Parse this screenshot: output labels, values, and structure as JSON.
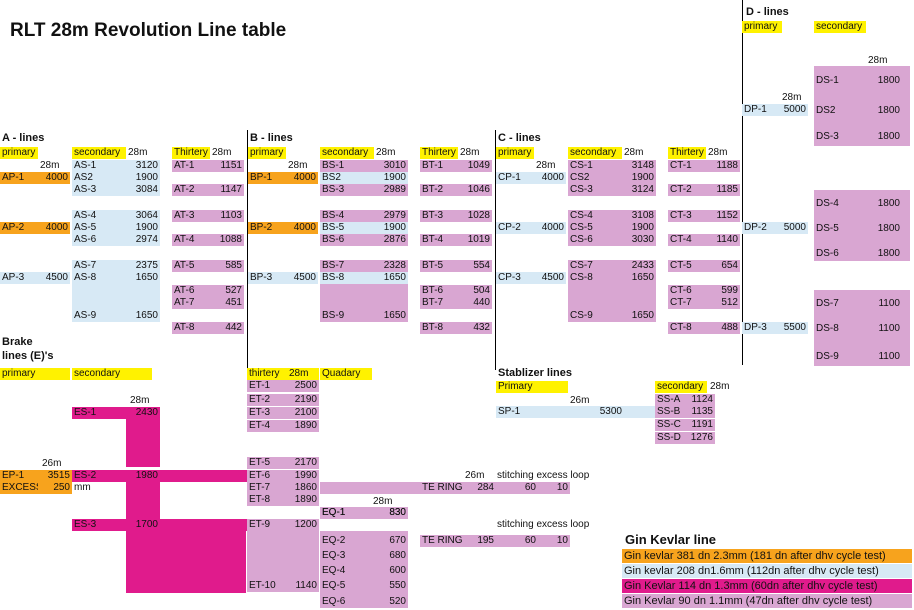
{
  "title": "RLT 28m Revolution Line table",
  "a": {
    "header": "A - lines",
    "primary": "primary",
    "secondary": "secondary",
    "thirtery": "Thirtery",
    "len28": "28m",
    "p": [
      [
        "AP-1",
        "4000"
      ],
      [
        "AP-2",
        "4000"
      ],
      [
        "AP-3",
        "4500"
      ]
    ],
    "s": [
      [
        "AS-1",
        "3120"
      ],
      [
        "AS2",
        "1900"
      ],
      [
        "AS-3",
        "3084"
      ],
      [
        "AS-4",
        "3064"
      ],
      [
        "AS-5",
        "1900"
      ],
      [
        "AS-6",
        "2974"
      ],
      [
        "AS-7",
        "2375"
      ],
      [
        "AS-8",
        "1650"
      ],
      [
        "AS-9",
        "1650"
      ]
    ],
    "t": [
      [
        "AT-1",
        "1151"
      ],
      [
        "AT-2",
        "1147"
      ],
      [
        "AT-3",
        "1103"
      ],
      [
        "AT-4",
        "1088"
      ],
      [
        "AT-5",
        "585"
      ],
      [
        "AT-6",
        "527"
      ],
      [
        "AT-7",
        "451"
      ],
      [
        "AT-8",
        "442"
      ]
    ]
  },
  "b": {
    "header": "B - lines",
    "primary": "primary",
    "secondary": "secondary",
    "thirtery": "Thirtery",
    "len28": "28m",
    "p": [
      [
        "BP-1",
        "4000"
      ],
      [
        "BP-2",
        "4000"
      ],
      [
        "BP-3",
        "4500"
      ]
    ],
    "s": [
      [
        "BS-1",
        "3010"
      ],
      [
        "BS2",
        "1900"
      ],
      [
        "BS-3",
        "2989"
      ],
      [
        "BS-4",
        "2979"
      ],
      [
        "BS-5",
        "1900"
      ],
      [
        "BS-6",
        "2876"
      ],
      [
        "BS-7",
        "2328"
      ],
      [
        "BS-8",
        "1650"
      ],
      [
        "BS-9",
        "1650"
      ]
    ],
    "t": [
      [
        "BT-1",
        "1049"
      ],
      [
        "BT-2",
        "1046"
      ],
      [
        "BT-3",
        "1028"
      ],
      [
        "BT-4",
        "1019"
      ],
      [
        "BT-5",
        "554"
      ],
      [
        "BT-6",
        "504"
      ],
      [
        "BT-7",
        "440"
      ],
      [
        "BT-8",
        "432"
      ]
    ]
  },
  "c": {
    "header": "C - lines",
    "primary": "primary",
    "secondary": "secondary",
    "thirtery": "Thirtery",
    "len28": "28m",
    "p": [
      [
        "CP-1",
        "4000"
      ],
      [
        "CP-2",
        "4000"
      ],
      [
        "CP-3",
        "4500"
      ]
    ],
    "s": [
      [
        "CS-1",
        "3148"
      ],
      [
        "CS2",
        "1900"
      ],
      [
        "CS-3",
        "3124"
      ],
      [
        "CS-4",
        "3108"
      ],
      [
        "CS-5",
        "1900"
      ],
      [
        "CS-6",
        "3030"
      ],
      [
        "CS-7",
        "2433"
      ],
      [
        "CS-8",
        "1650"
      ],
      [
        "CS-9",
        "1650"
      ]
    ],
    "t": [
      [
        "CT-1",
        "1188"
      ],
      [
        "CT-2",
        "1185"
      ],
      [
        "CT-3",
        "1152"
      ],
      [
        "CT-4",
        "1140"
      ],
      [
        "CT-5",
        "654"
      ],
      [
        "CT-6",
        "599"
      ],
      [
        "CT-7",
        "512"
      ],
      [
        "CT-8",
        "488"
      ]
    ]
  },
  "d": {
    "header": "D - lines",
    "primary": "primary",
    "secondary": "secondary",
    "len28": "28m",
    "p": [
      [
        "DP-1",
        "5000"
      ],
      [
        "DP-2",
        "5000"
      ],
      [
        "DP-3",
        "5500"
      ]
    ],
    "s": [
      [
        "DS-1",
        "1800"
      ],
      [
        "DS2",
        "1800"
      ],
      [
        "DS-3",
        "1800"
      ],
      [
        "DS-4",
        "1800"
      ],
      [
        "DS-5",
        "1800"
      ],
      [
        "DS-6",
        "1800"
      ],
      [
        "DS-7",
        "1100"
      ],
      [
        "DS-8",
        "1100"
      ],
      [
        "DS-9",
        "1100"
      ]
    ]
  },
  "brake": {
    "header1": "Brake",
    "header2": "lines (E)'s",
    "primary": "primary",
    "secondary": "secondary",
    "thirtery": "thirtery",
    "quadary": "Quadary",
    "len28": "28m",
    "len26": "26m",
    "ep1": [
      "EP-1",
      "3515"
    ],
    "excess": [
      "EXCESS",
      "250"
    ],
    "mm": "mm",
    "s": [
      [
        "ES-1",
        "2430"
      ],
      [
        "ES-2",
        "1980"
      ],
      [
        "ES-3",
        "1700"
      ]
    ],
    "t": [
      [
        "ET-1",
        "2500"
      ],
      [
        "ET-2",
        "2190"
      ],
      [
        "ET-3",
        "2100"
      ],
      [
        "ET-4",
        "1890"
      ],
      [
        "ET-5",
        "2170"
      ],
      [
        "ET-6",
        "1990"
      ],
      [
        "ET-7",
        "1860"
      ],
      [
        "ET-8",
        "1890"
      ],
      [
        "ET-9",
        "1200"
      ],
      [
        "ET-10",
        "1140"
      ]
    ],
    "q": [
      [
        "EQ-1",
        "830"
      ],
      [
        "EQ-2",
        "670"
      ],
      [
        "EQ-3",
        "680"
      ],
      [
        "EQ-4",
        "600"
      ],
      [
        "EQ-5",
        "550"
      ],
      [
        "EQ-6",
        "520"
      ]
    ],
    "stitch_label": "stitching excess loop",
    "ring1": [
      "TE RING",
      "284",
      "60",
      "10"
    ],
    "ring2": [
      "TE RING",
      "195",
      "60",
      "10"
    ]
  },
  "stab": {
    "header": "Stablizer lines",
    "primary": "Primary",
    "secondary": "secondary",
    "len26": "26m",
    "len28": "28m",
    "sp1": [
      "SP-1",
      "5300"
    ],
    "s": [
      [
        "SS-A",
        "1124"
      ],
      [
        "SS-B",
        "1135"
      ],
      [
        "SS-C",
        "1191"
      ],
      [
        "SS-D",
        "1276"
      ]
    ]
  },
  "gin": {
    "header": "Gin Kevlar line",
    "items": [
      "Gin kevlar 381 dn 2.3mm (181 dn after dhv cycle test)",
      "Gin kevlar 208 dn1.6mm (112dn after dhv cycle test)",
      "Gin Kevlar 114 dn 1.3mm (60dn after dhv cycle test)",
      "Gin Kevlar 90 dn 1.1mm (47dn after dhv cycle test)"
    ]
  },
  "colors": {
    "yellow": "#fff200",
    "orange": "#f7a31d",
    "light_blue": "#d7e9f5",
    "purple": "#d9a6d2",
    "magenta": "#e01b8c"
  }
}
